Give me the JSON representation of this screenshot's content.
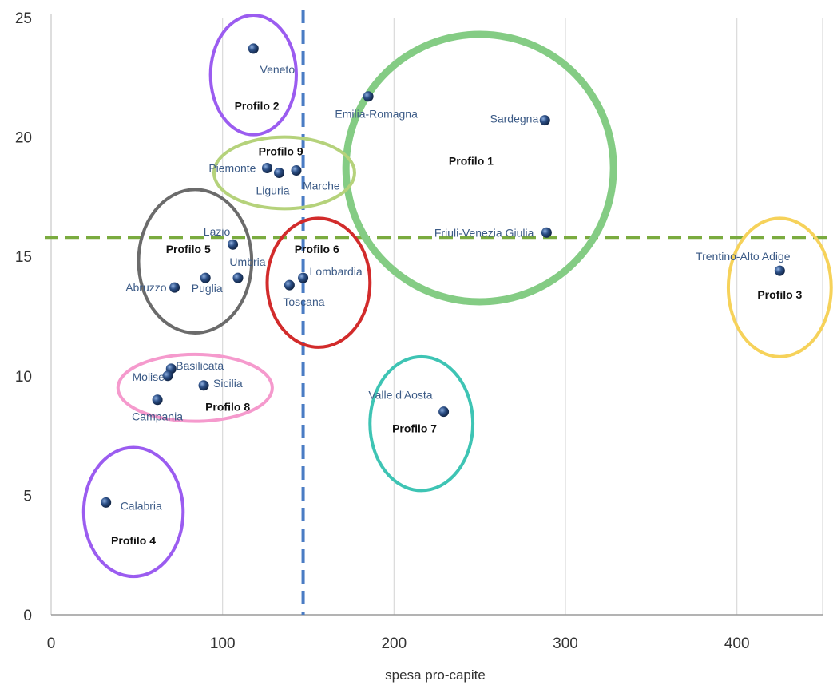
{
  "chart_data": {
    "type": "scatter",
    "xlabel": "spesa pro-capite",
    "ylabel": "",
    "xlim": [
      0,
      450
    ],
    "ylim": [
      0,
      25
    ],
    "xticks": [
      0,
      100,
      200,
      300,
      400
    ],
    "yticks": [
      0,
      5,
      10,
      15,
      20,
      25
    ],
    "grid": "vertical",
    "points": [
      {
        "label": "Veneto",
        "x": 118,
        "y": 23.7
      },
      {
        "label": "Emilia-Romagna",
        "x": 185,
        "y": 21.7
      },
      {
        "label": "Sardegna",
        "x": 288,
        "y": 20.7
      },
      {
        "label": "Piemonte",
        "x": 126,
        "y": 18.7
      },
      {
        "label": "Liguria",
        "x": 133,
        "y": 18.5
      },
      {
        "label": "Marche",
        "x": 143,
        "y": 18.6
      },
      {
        "label": "Friuli-Venezia Giulia",
        "x": 289,
        "y": 16.0
      },
      {
        "label": "Lazio",
        "x": 106,
        "y": 15.5
      },
      {
        "label": "Umbria",
        "x": 109,
        "y": 14.1
      },
      {
        "label": "Puglia",
        "x": 90,
        "y": 14.1
      },
      {
        "label": "Abruzzo",
        "x": 72,
        "y": 13.7
      },
      {
        "label": "Lombardia",
        "x": 147,
        "y": 14.1
      },
      {
        "label": "Toscana",
        "x": 139,
        "y": 13.8
      },
      {
        "label": "Trentino-Alto Adige",
        "x": 425,
        "y": 14.4
      },
      {
        "label": "Basilicata",
        "x": 70,
        "y": 10.3
      },
      {
        "label": "Molise",
        "x": 68,
        "y": 10.0
      },
      {
        "label": "Sicilia",
        "x": 89,
        "y": 9.6
      },
      {
        "label": "Campania",
        "x": 62,
        "y": 9.0
      },
      {
        "label": "Valle d'Aosta",
        "x": 229,
        "y": 8.5
      },
      {
        "label": "Calabria",
        "x": 32,
        "y": 4.7
      }
    ],
    "reference_lines": [
      {
        "orientation": "vertical",
        "x": 147,
        "color": "#4a7cc4",
        "style": "dashed"
      },
      {
        "orientation": "horizontal",
        "y": 15.8,
        "color": "#7aab3f",
        "style": "dashed"
      }
    ],
    "groups": [
      {
        "name": "Profilo 1",
        "color": "#84cc84",
        "label_x": 245,
        "label_y": 19.0,
        "ellipse": {
          "cx": 250,
          "cy": 18.7,
          "rx": 78,
          "ry": 5.6,
          "angle": 35
        }
      },
      {
        "name": "Profilo 2",
        "color": "#9b5cf0",
        "label_x": 120,
        "label_y": 21.3,
        "ellipse": {
          "cx": 118,
          "cy": 22.6,
          "rx": 25,
          "ry": 2.5
        }
      },
      {
        "name": "Profilo 3",
        "color": "#f6d25a",
        "label_x": 425,
        "label_y": 13.4,
        "ellipse": {
          "cx": 425,
          "cy": 13.7,
          "rx": 30,
          "ry": 2.9
        }
      },
      {
        "name": "Profilo 4",
        "color": "#9b5cf0",
        "label_x": 48,
        "label_y": 3.1,
        "ellipse": {
          "cx": 48,
          "cy": 4.3,
          "rx": 29,
          "ry": 2.7
        }
      },
      {
        "name": "Profilo 5",
        "color": "#6b6b6b",
        "label_x": 80,
        "label_y": 15.3,
        "ellipse": {
          "cx": 84,
          "cy": 14.8,
          "rx": 33,
          "ry": 3.0
        }
      },
      {
        "name": "Profilo 6",
        "color": "#d22b2b",
        "label_x": 155,
        "label_y": 15.3,
        "ellipse": {
          "cx": 156,
          "cy": 13.9,
          "rx": 30,
          "ry": 2.7
        }
      },
      {
        "name": "Profilo 7",
        "color": "#3ec4b4",
        "label_x": 212,
        "label_y": 7.8,
        "ellipse": {
          "cx": 216,
          "cy": 8.0,
          "rx": 30,
          "ry": 2.8
        }
      },
      {
        "name": "Profilo 8",
        "color": "#f59acd",
        "label_x": 103,
        "label_y": 8.7,
        "ellipse": {
          "cx": 84,
          "cy": 9.5,
          "rx": 45,
          "ry": 1.4
        }
      },
      {
        "name": "Profilo 9",
        "color": "#b5d27b",
        "label_x": 134,
        "label_y": 19.4,
        "ellipse": {
          "cx": 136,
          "cy": 18.5,
          "rx": 41,
          "ry": 1.5
        }
      }
    ]
  }
}
